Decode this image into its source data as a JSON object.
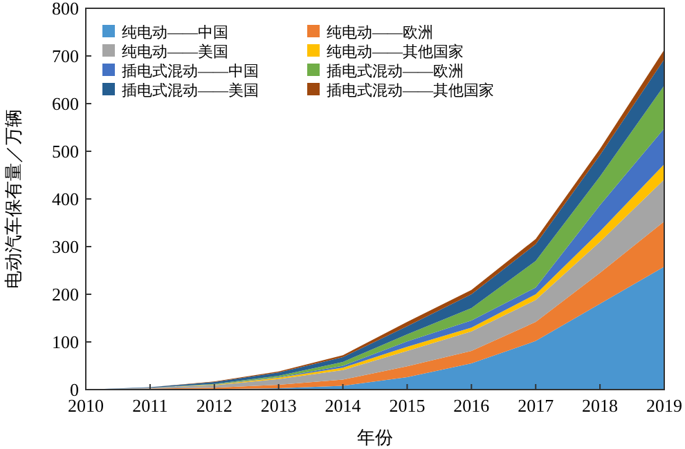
{
  "chart_data": {
    "type": "area",
    "stacked": true,
    "xlabel": "年份",
    "ylabel": "电动汽车保有量／万辆",
    "x": [
      2010,
      2011,
      2012,
      2013,
      2014,
      2015,
      2016,
      2017,
      2018,
      2019
    ],
    "series": [
      {
        "name": "纯电动——中国",
        "color": "#4a96d0",
        "values": [
          0,
          1,
          1,
          3,
          8,
          26,
          55,
          102,
          180,
          258
        ]
      },
      {
        "name": "纯电动——欧洲",
        "color": "#ed7d31",
        "values": [
          0,
          1,
          3,
          7,
          13,
          23,
          26,
          40,
          65,
          95
        ]
      },
      {
        "name": "纯电动——美国",
        "color": "#a5a5a5",
        "values": [
          0,
          2,
          5,
          12,
          20,
          32,
          41,
          46,
          65,
          88
        ]
      },
      {
        "name": "纯电动——其他国家",
        "color": "#ffc000",
        "values": [
          0,
          0,
          1,
          3,
          5,
          9,
          8,
          12,
          22,
          32
        ]
      },
      {
        "name": "插电式混动——中国",
        "color": "#4472c4",
        "values": [
          0,
          0,
          1,
          1,
          4,
          11,
          15,
          14,
          55,
          75
        ]
      },
      {
        "name": "插电式混动——欧洲",
        "color": "#70ad47",
        "values": [
          0,
          0,
          1,
          3,
          8,
          15,
          26,
          56,
          60,
          90
        ]
      },
      {
        "name": "插电式混动——美国",
        "color": "#255e91",
        "values": [
          0,
          1,
          4,
          7,
          10,
          17,
          29,
          35,
          45,
          55
        ]
      },
      {
        "name": "插电式混动——其他国家",
        "color": "#9e480e",
        "values": [
          0,
          0,
          1,
          2,
          4,
          9,
          9,
          11,
          13,
          20
        ]
      }
    ],
    "xlim": [
      2010,
      2019
    ],
    "xticks": [
      2010,
      2011,
      2012,
      2013,
      2014,
      2015,
      2016,
      2017,
      2018,
      2019
    ],
    "ylim": [
      0,
      800
    ],
    "yticks": [
      0,
      100,
      200,
      300,
      400,
      500,
      600,
      700,
      800
    ],
    "grid": false,
    "legend": "top left"
  }
}
